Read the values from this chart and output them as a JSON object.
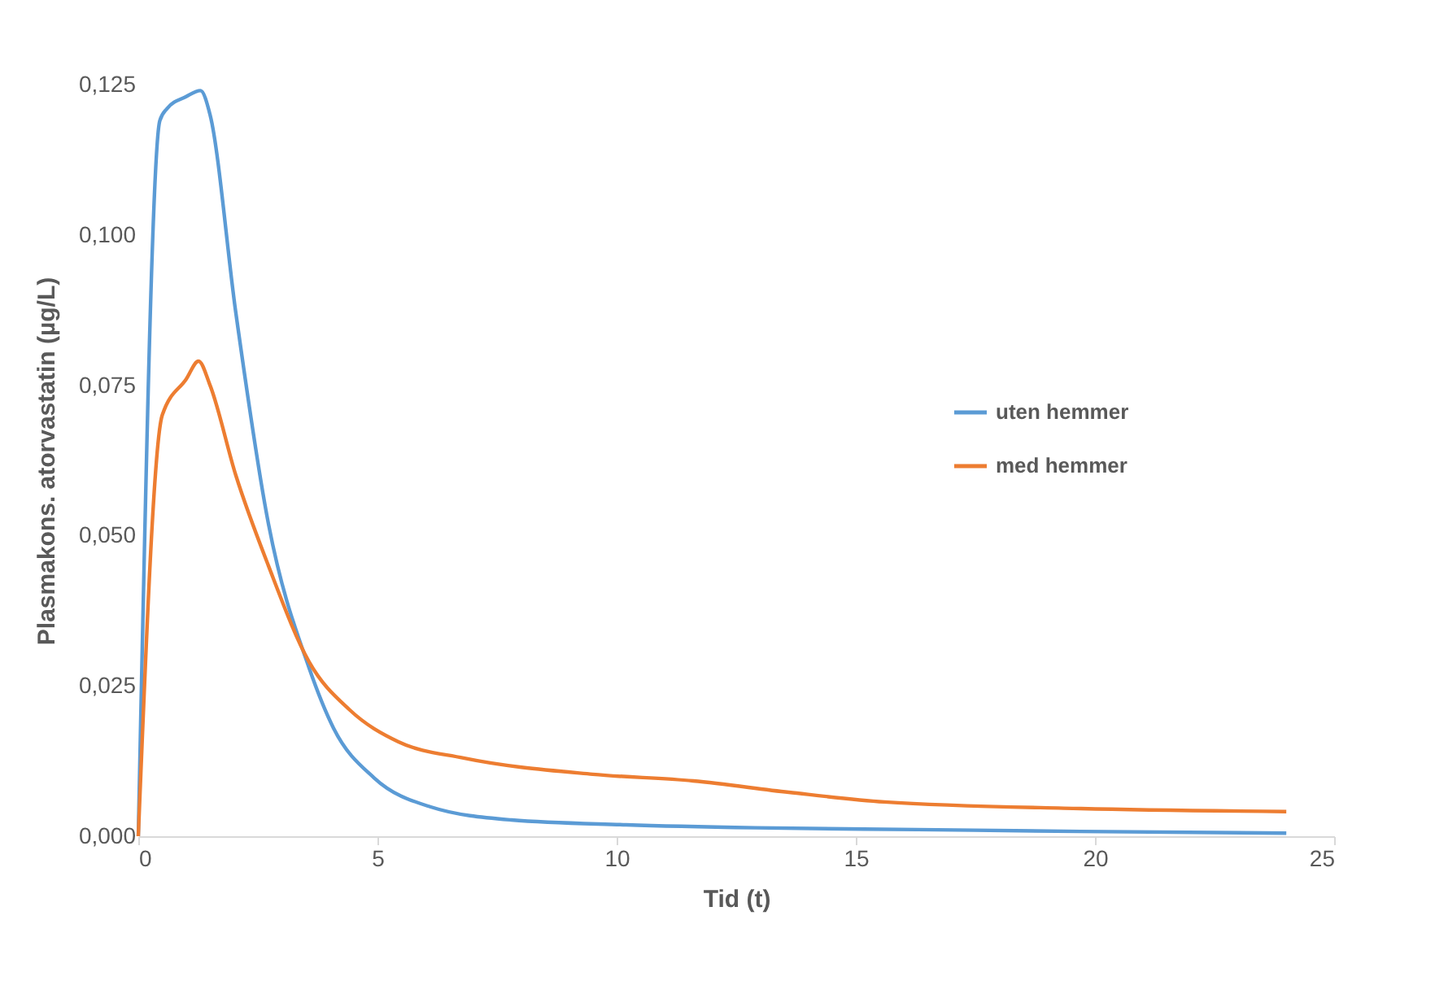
{
  "chart_data": {
    "type": "line",
    "xlabel": "Tid (t)",
    "ylabel": "Plasmakons. atorvastatin (µg/L)",
    "xlim": [
      0,
      25
    ],
    "xticks": [
      0,
      5,
      10,
      15,
      20,
      25
    ],
    "ylim": [
      0,
      0.125
    ],
    "yticks": [
      {
        "value": 0,
        "label": "0,000"
      },
      {
        "value": 0.025,
        "label": "0,025"
      },
      {
        "value": 0.05,
        "label": "0,050"
      },
      {
        "value": 0.075,
        "label": "0,075"
      },
      {
        "value": 0.1,
        "label": "0,100"
      },
      {
        "value": 0.125,
        "label": "0,125"
      }
    ],
    "grid": false,
    "legend": "right",
    "marker": "none",
    "line_style": "solid",
    "series": [
      {
        "name": "uten hemmer",
        "color": "#5b9bd5",
        "x": [
          0,
          0.45,
          0.6,
          1.0,
          1.3,
          1.5,
          2.04,
          2.72,
          3.57,
          4.08,
          4.93,
          6.1,
          7.8,
          10.2,
          12.9,
          16.3,
          19.7,
          24
        ],
        "values": [
          0,
          0.119,
          0.121,
          0.123,
          0.124,
          0.12,
          0.087,
          0.052,
          0.028,
          0.018,
          0.0097,
          0.0049,
          0.0027,
          0.0019,
          0.0014,
          0.0011,
          0.0008,
          0.0005
        ]
      },
      {
        "name": "med hemmer",
        "color": "#ed7d31",
        "x": [
          0,
          0.5,
          1.0,
          1.26,
          1.5,
          2.04,
          2.72,
          3.57,
          4.42,
          5.44,
          6.8,
          9.5,
          11.6,
          13.6,
          15.6,
          19.7,
          24
        ],
        "values": [
          0,
          0.07,
          0.076,
          0.079,
          0.075,
          0.06,
          0.045,
          0.029,
          0.021,
          0.0157,
          0.013,
          0.0103,
          0.0092,
          0.0073,
          0.0057,
          0.0046,
          0.0041
        ]
      }
    ]
  }
}
